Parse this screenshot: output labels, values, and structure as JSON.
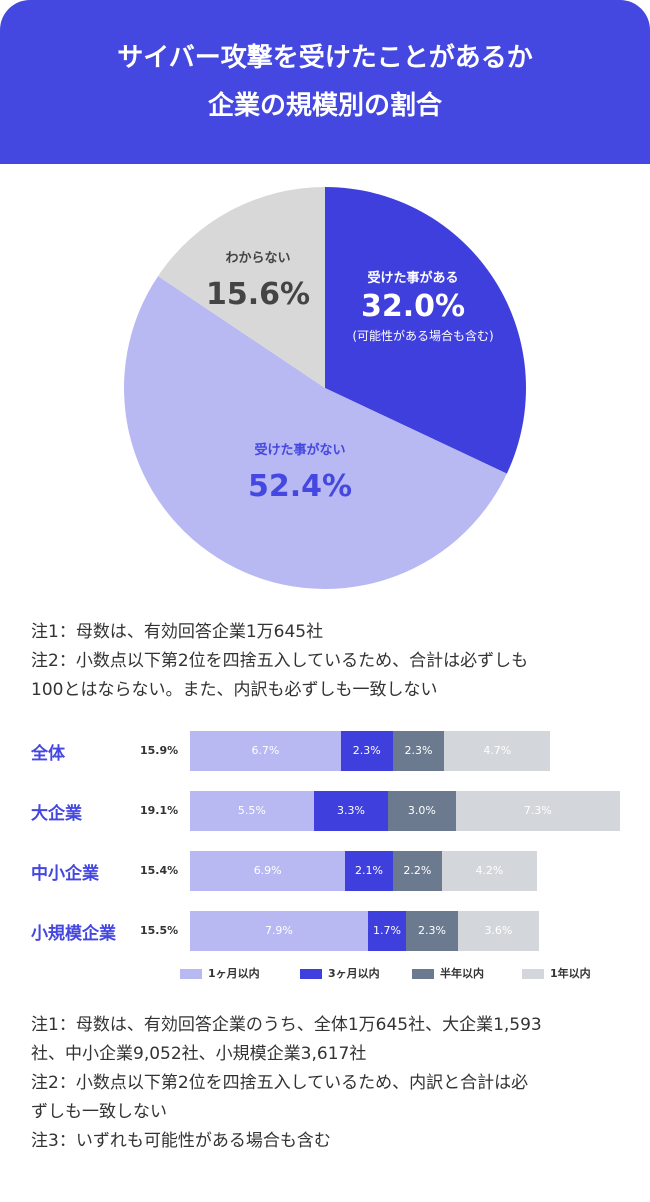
{
  "header": {
    "title_line1": "サイバー攻撃を受けたことがあるか",
    "title_line2": "企業の規模別の割合"
  },
  "colors": {
    "brand": "#4447e0",
    "yes": "#3f3fdd",
    "no": "#b8b9f2",
    "unknown": "#d8d8d8",
    "within_1m": "#b8b9f2",
    "within_3m": "#3f3fdd",
    "within_6m": "#6b7a8f",
    "within_1y": "#d3d6da"
  },
  "pie_chart_data": {
    "type": "pie",
    "slices": [
      {
        "label": "受けた事がある",
        "value": 32.0,
        "value_text": "32.0%",
        "note": "(可能性がある場合も含む)",
        "color_key": "yes"
      },
      {
        "label": "受けた事がない",
        "value": 52.4,
        "value_text": "52.4%",
        "note": "",
        "color_key": "no"
      },
      {
        "label": "わからない",
        "value": 15.6,
        "value_text": "15.6%",
        "note": "",
        "color_key": "unknown"
      }
    ]
  },
  "notes1": [
    "注1：母数は、有効回答企業1万645社",
    "注2：小数点以下第2位を四捨五入しているため、合計は必ずしも",
    "100とはならない。また、内訳も必ずしも一致しない"
  ],
  "chart_data": {
    "type": "bar",
    "orientation": "horizontal",
    "stacked": true,
    "categories": [
      "全体",
      "大企業",
      "中小企業",
      "小規模企業"
    ],
    "totals": [
      "15.9%",
      "19.1%",
      "15.4%",
      "15.5%"
    ],
    "series": [
      {
        "name": "1ヶ月以内",
        "values": [
          6.7,
          5.5,
          6.9,
          7.9
        ],
        "color_key": "within_1m"
      },
      {
        "name": "3ヶ月以内",
        "values": [
          2.3,
          3.3,
          2.1,
          1.7
        ],
        "color_key": "within_3m"
      },
      {
        "name": "半年以内",
        "values": [
          2.3,
          3.0,
          2.2,
          2.3
        ],
        "color_key": "within_6m"
      },
      {
        "name": "1年以内",
        "values": [
          4.7,
          7.3,
          4.2,
          3.6
        ],
        "color_key": "within_1y"
      }
    ],
    "xlim": [
      0,
      19.1
    ]
  },
  "notes2": [
    "注1：母数は、有効回答企業のうち、全体1万645社、大企業1,593",
    "社、中小企業9,052社、小規模企業3,617社",
    "注2：小数点以下第2位を四捨五入しているため、内訳と合計は必",
    "ずしも一致しない",
    "注3：いずれも可能性がある場合も含む"
  ]
}
